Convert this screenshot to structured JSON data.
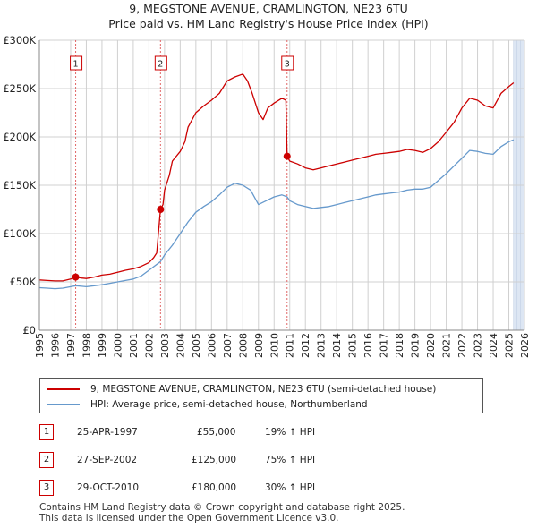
{
  "title": {
    "line1": "9, MEGSTONE AVENUE, CRAMLINGTON, NE23 6TU",
    "line2": "Price paid vs. HM Land Registry's House Price Index (HPI)"
  },
  "colors": {
    "price_line": "#cc0000",
    "hpi_line": "#6699cc",
    "marker": "#cc0000",
    "shade": "#dde6f3",
    "vline": "#e06666"
  },
  "chart_data": {
    "type": "line",
    "title": "Price paid vs. HM Land Registry's House Price Index (HPI)",
    "xlabel": "",
    "ylabel": "",
    "xlim": [
      1995,
      2026
    ],
    "ylim": [
      0,
      300000
    ],
    "x_ticks": [
      "1995",
      "1996",
      "1997",
      "1998",
      "1999",
      "2000",
      "2001",
      "2002",
      "2003",
      "2004",
      "2005",
      "2006",
      "2007",
      "2008",
      "2009",
      "2010",
      "2011",
      "2012",
      "2013",
      "2014",
      "2015",
      "2016",
      "2017",
      "2018",
      "2019",
      "2020",
      "2021",
      "2022",
      "2023",
      "2024",
      "2025",
      "2026"
    ],
    "y_ticks": [
      {
        "value": 0,
        "label": "£0"
      },
      {
        "value": 50000,
        "label": "£50K"
      },
      {
        "value": 100000,
        "label": "£100K"
      },
      {
        "value": 150000,
        "label": "£150K"
      },
      {
        "value": 200000,
        "label": "£200K"
      },
      {
        "value": 250000,
        "label": "£250K"
      },
      {
        "value": 300000,
        "label": "£300K"
      }
    ],
    "grid": true,
    "shaded_future_from": 2025.3,
    "series": [
      {
        "name": "9, MEGSTONE AVENUE, CRAMLINGTON, NE23 6TU (semi-detached house)",
        "color": "#cc0000",
        "points": [
          [
            1995.0,
            52000
          ],
          [
            1995.5,
            51500
          ],
          [
            1996.0,
            51000
          ],
          [
            1996.5,
            51000
          ],
          [
            1997.0,
            53000
          ],
          [
            1997.32,
            55000
          ],
          [
            1997.7,
            54000
          ],
          [
            1998.0,
            53500
          ],
          [
            1998.5,
            55000
          ],
          [
            1999.0,
            57000
          ],
          [
            1999.5,
            58000
          ],
          [
            2000.0,
            60000
          ],
          [
            2000.5,
            62000
          ],
          [
            2001.0,
            63500
          ],
          [
            2001.5,
            66000
          ],
          [
            2002.0,
            70000
          ],
          [
            2002.3,
            75000
          ],
          [
            2002.5,
            80000
          ],
          [
            2002.74,
            125000
          ],
          [
            2002.9,
            130000
          ],
          [
            2003.0,
            145000
          ],
          [
            2003.3,
            160000
          ],
          [
            2003.5,
            175000
          ],
          [
            2004.0,
            185000
          ],
          [
            2004.3,
            195000
          ],
          [
            2004.5,
            210000
          ],
          [
            2005.0,
            225000
          ],
          [
            2005.5,
            232000
          ],
          [
            2006.0,
            238000
          ],
          [
            2006.5,
            245000
          ],
          [
            2007.0,
            258000
          ],
          [
            2007.5,
            262000
          ],
          [
            2008.0,
            265000
          ],
          [
            2008.3,
            258000
          ],
          [
            2008.6,
            245000
          ],
          [
            2009.0,
            225000
          ],
          [
            2009.3,
            218000
          ],
          [
            2009.6,
            230000
          ],
          [
            2010.0,
            235000
          ],
          [
            2010.5,
            240000
          ],
          [
            2010.75,
            238000
          ],
          [
            2010.83,
            180000
          ],
          [
            2011.0,
            175000
          ],
          [
            2011.5,
            172000
          ],
          [
            2012.0,
            168000
          ],
          [
            2012.5,
            166000
          ],
          [
            2013.0,
            168000
          ],
          [
            2013.5,
            170000
          ],
          [
            2014.0,
            172000
          ],
          [
            2014.5,
            174000
          ],
          [
            2015.0,
            176000
          ],
          [
            2015.5,
            178000
          ],
          [
            2016.0,
            180000
          ],
          [
            2016.5,
            182000
          ],
          [
            2017.0,
            183000
          ],
          [
            2017.5,
            184000
          ],
          [
            2018.0,
            185000
          ],
          [
            2018.5,
            187000
          ],
          [
            2019.0,
            186000
          ],
          [
            2019.5,
            184000
          ],
          [
            2020.0,
            188000
          ],
          [
            2020.5,
            195000
          ],
          [
            2021.0,
            205000
          ],
          [
            2021.5,
            215000
          ],
          [
            2022.0,
            230000
          ],
          [
            2022.5,
            240000
          ],
          [
            2023.0,
            238000
          ],
          [
            2023.5,
            232000
          ],
          [
            2024.0,
            230000
          ],
          [
            2024.5,
            245000
          ],
          [
            2025.0,
            252000
          ],
          [
            2025.3,
            256000
          ]
        ]
      },
      {
        "name": "HPI: Average price, semi-detached house, Northumberland",
        "color": "#6699cc",
        "points": [
          [
            1995.0,
            44000
          ],
          [
            1995.5,
            43500
          ],
          [
            1996.0,
            43000
          ],
          [
            1996.5,
            43500
          ],
          [
            1997.0,
            45000
          ],
          [
            1997.32,
            46000
          ],
          [
            1997.7,
            45500
          ],
          [
            1998.0,
            45000
          ],
          [
            1998.5,
            46000
          ],
          [
            1999.0,
            47000
          ],
          [
            1999.5,
            48500
          ],
          [
            2000.0,
            50000
          ],
          [
            2000.5,
            51500
          ],
          [
            2001.0,
            53000
          ],
          [
            2001.5,
            56000
          ],
          [
            2002.0,
            62000
          ],
          [
            2002.74,
            71000
          ],
          [
            2003.0,
            78000
          ],
          [
            2003.5,
            88000
          ],
          [
            2004.0,
            100000
          ],
          [
            2004.5,
            112000
          ],
          [
            2005.0,
            122000
          ],
          [
            2005.5,
            128000
          ],
          [
            2006.0,
            133000
          ],
          [
            2006.5,
            140000
          ],
          [
            2007.0,
            148000
          ],
          [
            2007.5,
            152000
          ],
          [
            2008.0,
            150000
          ],
          [
            2008.5,
            145000
          ],
          [
            2009.0,
            130000
          ],
          [
            2009.5,
            134000
          ],
          [
            2010.0,
            138000
          ],
          [
            2010.5,
            140000
          ],
          [
            2010.83,
            138000
          ],
          [
            2011.0,
            134000
          ],
          [
            2011.5,
            130000
          ],
          [
            2012.0,
            128000
          ],
          [
            2012.5,
            126000
          ],
          [
            2013.0,
            127000
          ],
          [
            2013.5,
            128000
          ],
          [
            2014.0,
            130000
          ],
          [
            2014.5,
            132000
          ],
          [
            2015.0,
            134000
          ],
          [
            2015.5,
            136000
          ],
          [
            2016.0,
            138000
          ],
          [
            2016.5,
            140000
          ],
          [
            2017.0,
            141000
          ],
          [
            2017.5,
            142000
          ],
          [
            2018.0,
            143000
          ],
          [
            2018.5,
            145000
          ],
          [
            2019.0,
            146000
          ],
          [
            2019.5,
            146000
          ],
          [
            2020.0,
            148000
          ],
          [
            2020.5,
            155000
          ],
          [
            2021.0,
            162000
          ],
          [
            2021.5,
            170000
          ],
          [
            2022.0,
            178000
          ],
          [
            2022.5,
            186000
          ],
          [
            2023.0,
            185000
          ],
          [
            2023.5,
            183000
          ],
          [
            2024.0,
            182000
          ],
          [
            2024.5,
            190000
          ],
          [
            2025.0,
            195000
          ],
          [
            2025.3,
            197000
          ]
        ]
      }
    ],
    "sales": [
      {
        "label": "1",
        "date": "25-APR-1997",
        "x": 1997.32,
        "price": 55000
      },
      {
        "label": "2",
        "date": "27-SEP-2002",
        "x": 2002.74,
        "price": 125000
      },
      {
        "label": "3",
        "date": "29-OCT-2010",
        "x": 2010.83,
        "price": 180000
      }
    ]
  },
  "legend": {
    "price_label": "9, MEGSTONE AVENUE, CRAMLINGTON, NE23 6TU (semi-detached house)",
    "hpi_label": "HPI: Average price, semi-detached house, Northumberland"
  },
  "sales_table": [
    {
      "num": "1",
      "date": "25-APR-1997",
      "price": "£55,000",
      "hpi": "19% ↑ HPI"
    },
    {
      "num": "2",
      "date": "27-SEP-2002",
      "price": "£125,000",
      "hpi": "75% ↑ HPI"
    },
    {
      "num": "3",
      "date": "29-OCT-2010",
      "price": "£180,000",
      "hpi": "30% ↑ HPI"
    }
  ],
  "footer": {
    "line1": "Contains HM Land Registry data © Crown copyright and database right 2025.",
    "line2": "This data is licensed under the Open Government Licence v3.0."
  }
}
